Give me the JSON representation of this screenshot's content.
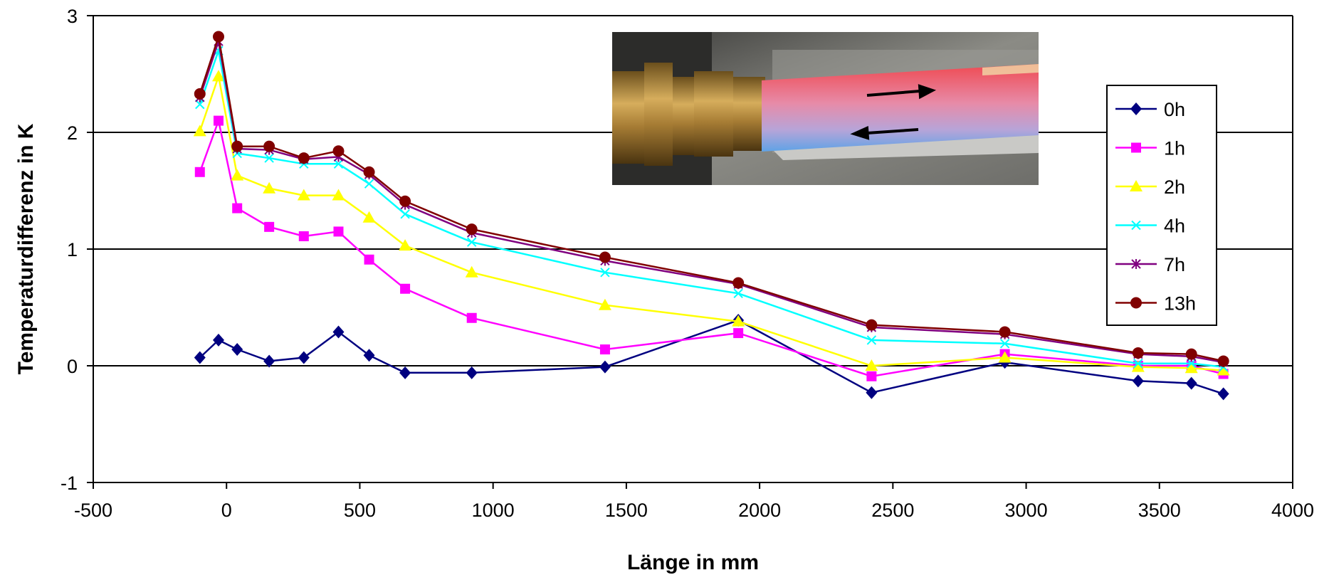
{
  "chart_data": {
    "type": "line",
    "xlabel": "Länge in mm",
    "ylabel": "Temperaturdifferenz in K",
    "xlim": [
      -500,
      4000
    ],
    "ylim": [
      -1,
      3
    ],
    "x_ticks": [
      "-500",
      "0",
      "500",
      "1000",
      "1500",
      "2000",
      "2500",
      "3000",
      "3500",
      "4000"
    ],
    "y_ticks": [
      "-1",
      "0",
      "1",
      "2",
      "3"
    ],
    "grid": "horizontal major gridlines",
    "legend_position": "right, inside plot",
    "x": [
      -100,
      -30,
      40,
      160,
      290,
      420,
      535,
      670,
      920,
      1420,
      1920,
      2420,
      2920,
      3420,
      3620,
      3740
    ],
    "series": [
      {
        "name": "0h",
        "color": "#000080",
        "marker": "diamond",
        "values": [
          0.07,
          0.22,
          0.14,
          0.04,
          0.07,
          0.29,
          0.09,
          -0.06,
          -0.06,
          -0.01,
          0.39,
          -0.23,
          0.03,
          -0.13,
          -0.15,
          -0.24
        ]
      },
      {
        "name": "1h",
        "color": "#FF00FF",
        "marker": "square",
        "values": [
          1.66,
          2.1,
          1.35,
          1.19,
          1.11,
          1.15,
          0.91,
          0.66,
          0.41,
          0.14,
          0.28,
          -0.09,
          0.1,
          0.0,
          0.0,
          -0.07
        ]
      },
      {
        "name": "2h",
        "color": "#FFFF00",
        "marker": "triangle",
        "values": [
          2.01,
          2.48,
          1.63,
          1.52,
          1.46,
          1.46,
          1.27,
          1.03,
          0.8,
          0.52,
          0.38,
          0.0,
          0.07,
          -0.01,
          -0.02,
          -0.04
        ]
      },
      {
        "name": "4h",
        "color": "#00FFFF",
        "marker": "x",
        "values": [
          2.24,
          2.7,
          1.82,
          1.78,
          1.73,
          1.73,
          1.56,
          1.3,
          1.06,
          0.8,
          0.62,
          0.22,
          0.19,
          0.02,
          0.02,
          -0.01
        ]
      },
      {
        "name": "7h",
        "color": "#800080",
        "marker": "star",
        "values": [
          2.3,
          2.78,
          1.86,
          1.85,
          1.77,
          1.79,
          1.64,
          1.38,
          1.14,
          0.9,
          0.7,
          0.33,
          0.27,
          0.1,
          0.08,
          0.03
        ]
      },
      {
        "name": "13h",
        "color": "#800000",
        "marker": "circle",
        "values": [
          2.33,
          2.82,
          1.88,
          1.88,
          1.78,
          1.84,
          1.66,
          1.41,
          1.17,
          0.93,
          0.71,
          0.35,
          0.29,
          0.11,
          0.1,
          0.04
        ]
      }
    ],
    "inset_image": "photo-of-pipe-with-brass-fitting-and-flow-arrows"
  }
}
